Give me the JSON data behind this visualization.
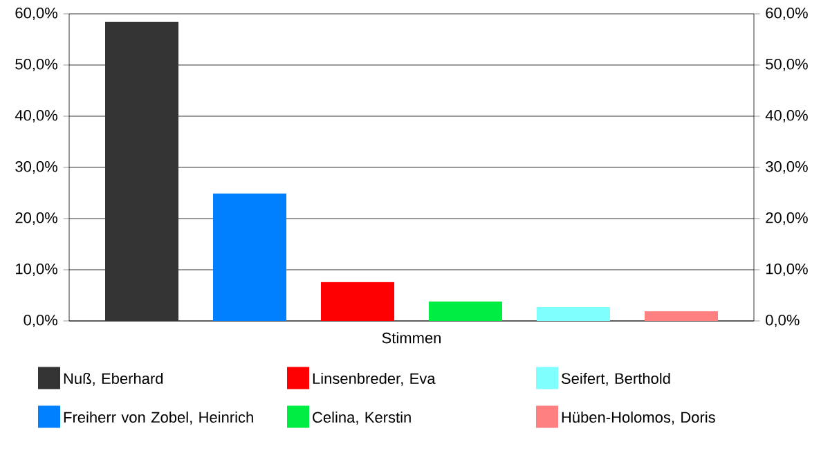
{
  "chart_data": {
    "type": "bar",
    "categories": [
      "Stimmen"
    ],
    "series": [
      {
        "name": "Nuß, Eberhard",
        "color": "#333333",
        "values": [
          58.4
        ]
      },
      {
        "name": "Freiherr von Zobel, Heinrich",
        "color": "#0080ff",
        "values": [
          24.9
        ]
      },
      {
        "name": "Linsenbreder, Eva",
        "color": "#ff0000",
        "values": [
          7.6
        ]
      },
      {
        "name": "Celina, Kerstin",
        "color": "#00ee44",
        "values": [
          3.8
        ]
      },
      {
        "name": "Seifert, Berthold",
        "color": "#80ffff",
        "values": [
          2.7
        ]
      },
      {
        "name": "Hüben-Holomos, Doris",
        "color": "#ff8080",
        "values": [
          1.9
        ]
      }
    ],
    "ylim": [
      0,
      60
    ],
    "yticks": [
      {
        "value": 0,
        "label": "0,0%"
      },
      {
        "value": 10,
        "label": "10,0%"
      },
      {
        "value": 20,
        "label": "20,0%"
      },
      {
        "value": 30,
        "label": "30,0%"
      },
      {
        "value": 40,
        "label": "40,0%"
      },
      {
        "value": 50,
        "label": "50,0%"
      },
      {
        "value": 60,
        "label": "60,0%"
      }
    ],
    "grid": "y",
    "legend": "bottom"
  }
}
